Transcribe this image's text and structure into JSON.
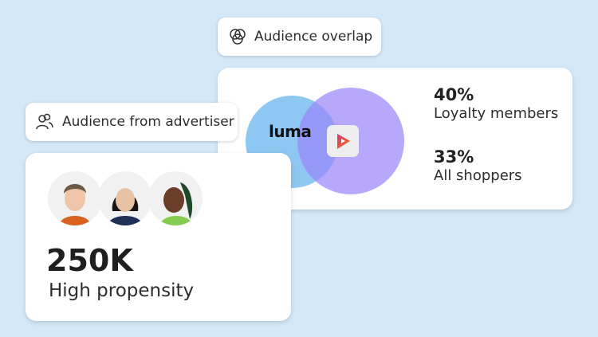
{
  "overlap_label": {
    "text": "Audience overlap",
    "icon": "venn-icon"
  },
  "advertiser_label": {
    "text": "Audience from advertiser",
    "icon": "users-icon"
  },
  "overlap_card": {
    "brand_logo_text": "luma",
    "colors": {
      "luma_circle": "#8ec8f2",
      "partner_circle": "#b6a9f8",
      "overlap": "#8090f2"
    },
    "stats": [
      {
        "value": "40%",
        "label": "Loyalty members"
      },
      {
        "value": "33%",
        "label": "All shoppers"
      }
    ]
  },
  "advertiser_card": {
    "value": "250K",
    "label": "High propensity",
    "avatars": [
      "person-1",
      "person-2",
      "person-3"
    ]
  }
}
